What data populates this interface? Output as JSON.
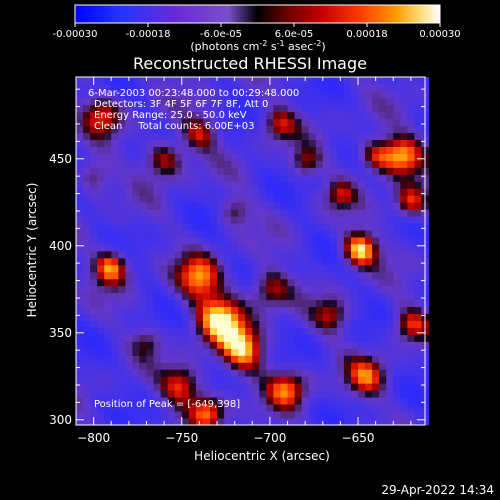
{
  "colorbar": {
    "ticks": [
      "-0.00030",
      "-0.00018",
      "-6.0e-05",
      "6.0e-05",
      "0.00018",
      "0.00030"
    ],
    "units_main": "(photons cm",
    "units_sup1": "-2",
    "units_s": " s",
    "units_sup2": "-1",
    "units_asec": " asec",
    "units_sup3": "-2",
    "units_close": ")",
    "min": -0.0003,
    "max": 0.0003
  },
  "chart_data": {
    "type": "heatmap",
    "title": "Reconstructed RHESSI Image",
    "xlabel": "Heliocentric X (arcsec)",
    "ylabel": "Heliocentric Y (arcsec)",
    "xlim": [
      -810,
      -612
    ],
    "ylim": [
      297,
      497
    ],
    "x_ticks": [
      -800,
      -750,
      -700,
      -650
    ],
    "y_ticks": [
      300,
      350,
      400,
      450
    ],
    "annotations": [
      "6-Mar-2003 00:23:48.000 to 00:29:48.000",
      "Detectors: 3F 4F 5F 6F 7F 8F, Att 0",
      "Energy Range: 25.0 - 50.0 keV",
      "Clean     Total counts: 6.00E+03"
    ],
    "peak_label": "Position of Peak = [-649,398]",
    "peak": [
      -649,
      398
    ],
    "grid": false,
    "hotspots": [
      {
        "x": -649,
        "y": 398,
        "amp": 1.0,
        "w": 7
      },
      {
        "x": -728,
        "y": 358,
        "amp": 0.95,
        "w": 10
      },
      {
        "x": -740,
        "y": 382,
        "amp": 0.75,
        "w": 9
      },
      {
        "x": -715,
        "y": 340,
        "amp": 0.8,
        "w": 9
      },
      {
        "x": -700,
        "y": 375,
        "amp": 0.6,
        "w": 8
      },
      {
        "x": -790,
        "y": 388,
        "amp": 0.85,
        "w": 7
      },
      {
        "x": -625,
        "y": 452,
        "amp": 0.85,
        "w": 8
      },
      {
        "x": -620,
        "y": 425,
        "amp": 0.7,
        "w": 7
      },
      {
        "x": -640,
        "y": 452,
        "amp": 0.65,
        "w": 7
      },
      {
        "x": -760,
        "y": 450,
        "amp": 0.65,
        "w": 8
      },
      {
        "x": -740,
        "y": 465,
        "amp": 0.55,
        "w": 7
      },
      {
        "x": -695,
        "y": 470,
        "amp": 0.55,
        "w": 7
      },
      {
        "x": -680,
        "y": 448,
        "amp": 0.5,
        "w": 6
      },
      {
        "x": -750,
        "y": 320,
        "amp": 0.7,
        "w": 8
      },
      {
        "x": -735,
        "y": 305,
        "amp": 0.75,
        "w": 7
      },
      {
        "x": -690,
        "y": 318,
        "amp": 0.7,
        "w": 8
      },
      {
        "x": -645,
        "y": 325,
        "amp": 0.65,
        "w": 8
      },
      {
        "x": -620,
        "y": 355,
        "amp": 0.6,
        "w": 7
      },
      {
        "x": -665,
        "y": 360,
        "amp": 0.5,
        "w": 7
      },
      {
        "x": -795,
        "y": 475,
        "amp": 0.55,
        "w": 8
      },
      {
        "x": -800,
        "y": 440,
        "amp": 0.45,
        "w": 7
      },
      {
        "x": -720,
        "y": 420,
        "amp": 0.4,
        "w": 6
      },
      {
        "x": -660,
        "y": 430,
        "amp": 0.45,
        "w": 6
      },
      {
        "x": -770,
        "y": 345,
        "amp": 0.35,
        "w": 6
      }
    ]
  },
  "timestamp": "29-Apr-2022 14:34"
}
